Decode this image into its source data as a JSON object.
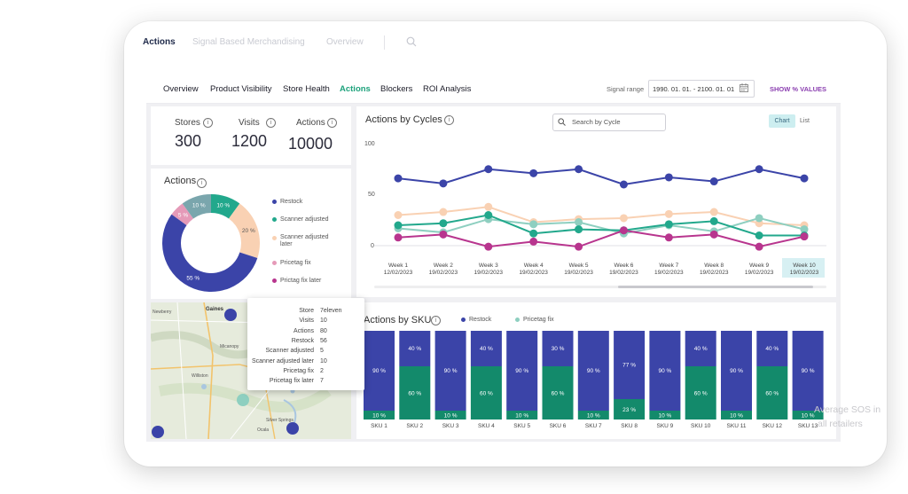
{
  "top_nav": {
    "items": [
      "Actions",
      "Signal Based Merchandising",
      "Overview"
    ]
  },
  "tabs": [
    "Overview",
    "Product Visibility",
    "Store Health",
    "Actions",
    "Blockers",
    "ROI Analysis"
  ],
  "filters": {
    "signal_label": "Signal range",
    "date_range": "1990. 01. 01. - 2100. 01. 01",
    "show_values": "SHOW % VALUES"
  },
  "stats": [
    {
      "label": "Stores",
      "value": "300"
    },
    {
      "label": "Visits",
      "value": "1200"
    },
    {
      "label": "Actions",
      "value": "10000"
    }
  ],
  "donut": {
    "title": "Actions",
    "legend": [
      "Restock",
      "Scanner adjusted",
      "Scanner adjusted later",
      "Pricetag fix",
      "Prictag fix later"
    ],
    "colors": [
      "#3b44a8",
      "#22a88c",
      "#f9d1b3",
      "#e59ab8",
      "#b8358e"
    ],
    "labels": [
      "10 %",
      "20 %",
      "55 %",
      "5 %",
      "10 %"
    ]
  },
  "cycles": {
    "title": "Actions by Cycles",
    "search_placeholder": "Search by Cycle",
    "toggle_chart": "Chart",
    "toggle_list": "List",
    "y_ticks": [
      "100",
      "50",
      "0"
    ]
  },
  "sku": {
    "title": "Actions by SKU",
    "legend": [
      "Restock",
      "Pricetag fix"
    ]
  },
  "tooltip": {
    "rows": [
      [
        "Store",
        "7eleven"
      ],
      [
        "Visits",
        "10"
      ],
      [
        "Actions",
        "80"
      ],
      [
        "Restock",
        "56"
      ],
      [
        "Scanner adjusted",
        "5"
      ],
      [
        "Scanner adjusted later",
        "10"
      ],
      [
        "Pricetag fix",
        "2"
      ],
      [
        "Pricetag fix later",
        "7"
      ]
    ]
  },
  "map": {
    "labels": [
      "Gaines",
      "Newberry",
      "Micanopy",
      "Williston",
      "Silver Springs",
      "Ocala"
    ]
  },
  "overlay": {
    "line1": "Average SOS in",
    "line2": "all retailers"
  },
  "chart_data": [
    {
      "type": "line",
      "title": "Actions by Cycles",
      "x": [
        "Week 1 12/02/2023",
        "Week 2 19/02/2023",
        "Week 3 19/02/2023",
        "Week 4 19/02/2023",
        "Week 5 19/02/2023",
        "Week 6 19/02/2023",
        "Week 7 19/02/2023",
        "Week 8 19/02/2023",
        "Week 9 19/02/2023",
        "Week 10 19/02/2023"
      ],
      "ylim": [
        0,
        100
      ],
      "series": [
        {
          "color": "#3b44a8",
          "values": [
            66,
            61,
            75,
            71,
            75,
            60,
            67,
            63,
            75,
            66
          ]
        },
        {
          "color": "#f9d1b3",
          "values": [
            30,
            33,
            38,
            23,
            26,
            27,
            31,
            33,
            22,
            20
          ]
        },
        {
          "color": "#8ecfc0",
          "values": [
            17,
            13,
            26,
            21,
            23,
            12,
            20,
            14,
            27,
            16
          ]
        },
        {
          "color": "#22a88c",
          "values": [
            20,
            22,
            30,
            12,
            16,
            15,
            21,
            24,
            10,
            10
          ]
        },
        {
          "color": "#b8358e",
          "values": [
            8,
            11,
            -1,
            4,
            -1,
            15,
            8,
            11,
            -1,
            9
          ]
        }
      ]
    },
    {
      "type": "bar",
      "title": "Actions by SKU",
      "categories": [
        "SKU 1",
        "SKU 2",
        "SKU 3",
        "SKU 4",
        "SKU 5",
        "SKU 6",
        "SKU 7",
        "SKU 8",
        "SKU 9",
        "SKU 10",
        "SKU 11",
        "SKU 12",
        "SKU 13"
      ],
      "series": [
        {
          "name": "Restock",
          "color": "#3b44a8",
          "values": [
            90,
            40,
            90,
            40,
            90,
            30,
            90,
            77,
            90,
            40,
            90,
            40,
            90
          ],
          "labels": [
            "90 %",
            "40 %",
            "90 %",
            "40 %",
            "90 %",
            "30 %",
            "90 %",
            "77 %",
            "90 %",
            "40 %",
            "90 %",
            "40 %",
            "90 %"
          ]
        },
        {
          "name": "Pricetag fix",
          "color": "#138a6b",
          "values": [
            10,
            60,
            10,
            60,
            10,
            60,
            10,
            23,
            10,
            60,
            10,
            60,
            10
          ],
          "labels": [
            "10 %",
            "60 %",
            "10 %",
            "60 %",
            "10 %",
            "60 %",
            "10 %",
            "23 %",
            "10 %",
            "60 %",
            "10 %",
            "60 %",
            "10 %"
          ]
        }
      ]
    }
  ]
}
